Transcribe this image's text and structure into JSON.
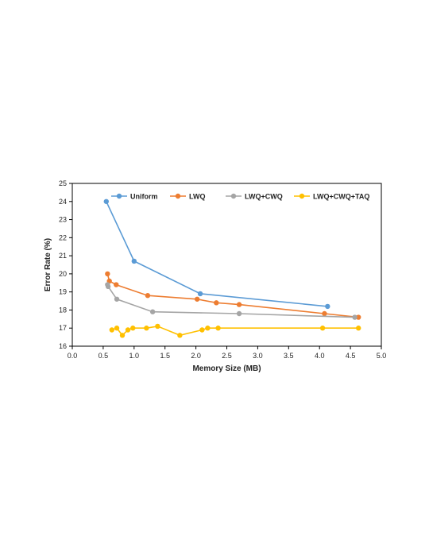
{
  "chart_data": {
    "type": "line",
    "xlabel": "Memory Size (MB)",
    "ylabel": "Error Rate (%)",
    "xlim": [
      0.0,
      5.0
    ],
    "ylim": [
      16,
      25
    ],
    "xticks": [
      "0.0",
      "0.5",
      "1.0",
      "1.5",
      "2.0",
      "2.5",
      "3.0",
      "3.5",
      "4.0",
      "4.5",
      "5.0"
    ],
    "yticks": [
      "16",
      "17",
      "18",
      "19",
      "20",
      "21",
      "22",
      "23",
      "24",
      "25"
    ],
    "grid": false,
    "legend_position": "top",
    "series": [
      {
        "name": "Uniform",
        "color": "#5b9bd5",
        "points": [
          [
            0.55,
            24.0
          ],
          [
            1.0,
            20.7
          ],
          [
            2.07,
            18.9
          ],
          [
            4.13,
            18.2
          ]
        ]
      },
      {
        "name": "LWQ",
        "color": "#ed7d31",
        "points": [
          [
            0.57,
            20.0
          ],
          [
            0.6,
            19.6
          ],
          [
            0.71,
            19.4
          ],
          [
            1.22,
            18.8
          ],
          [
            2.02,
            18.6
          ],
          [
            2.33,
            18.4
          ],
          [
            2.7,
            18.3
          ],
          [
            4.08,
            17.8
          ],
          [
            4.63,
            17.6
          ]
        ]
      },
      {
        "name": "LWQ+CWQ",
        "color": "#a5a5a5",
        "points": [
          [
            0.57,
            19.4
          ],
          [
            0.58,
            19.3
          ],
          [
            0.72,
            18.6
          ],
          [
            1.3,
            17.9
          ],
          [
            2.7,
            17.8
          ],
          [
            4.57,
            17.6
          ]
        ]
      },
      {
        "name": "LWQ+CWQ+TAQ",
        "color": "#ffc000",
        "points": [
          [
            0.64,
            16.9
          ],
          [
            0.72,
            17.0
          ],
          [
            0.81,
            16.6
          ],
          [
            0.9,
            16.9
          ],
          [
            0.98,
            17.0
          ],
          [
            1.2,
            17.0
          ],
          [
            1.38,
            17.1
          ],
          [
            1.74,
            16.6
          ],
          [
            2.1,
            16.9
          ],
          [
            2.19,
            17.0
          ],
          [
            2.36,
            17.0
          ],
          [
            4.05,
            17.0
          ],
          [
            4.63,
            17.0
          ]
        ]
      }
    ]
  }
}
